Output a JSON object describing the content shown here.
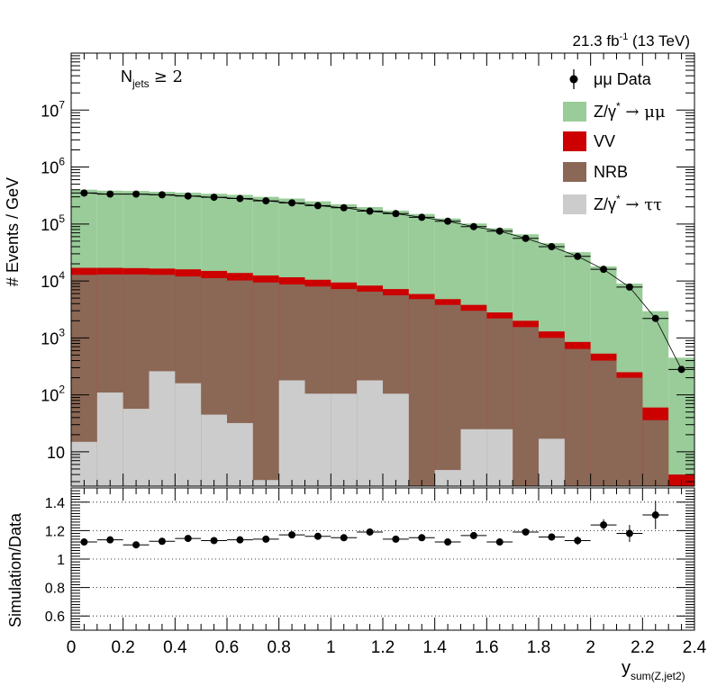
{
  "chart_data": [
    {
      "type": "stacked-histogram",
      "panel": "main",
      "lumi_label": "21.3 fb",
      "lumi_exponent": "-1",
      "lumi_suffix": " (13 TeV)",
      "category_label": "N",
      "category_subscript": "jets",
      "category_cut": "≥ 2",
      "ylabel": "# Events / GeV",
      "xlabel": "y",
      "xlabel_subscript": "sum(Z,jet2)",
      "yscale": "log",
      "ylim": [
        2.5,
        100000000
      ],
      "xlim": [
        0,
        2.4
      ],
      "x_edges": [
        0,
        0.1,
        0.2,
        0.3,
        0.4,
        0.5,
        0.6,
        0.7,
        0.8,
        0.9,
        1.0,
        1.1,
        1.2,
        1.3,
        1.4,
        1.5,
        1.6,
        1.7,
        1.8,
        1.9,
        2.0,
        2.1,
        2.2,
        2.3,
        2.4
      ],
      "y_ticks": [
        {
          "value": 10,
          "base": "10",
          "exp": ""
        },
        {
          "value": 100,
          "base": "10",
          "exp": "2"
        },
        {
          "value": 1000,
          "base": "10",
          "exp": "3"
        },
        {
          "value": 10000,
          "base": "10",
          "exp": "4"
        },
        {
          "value": 100000,
          "base": "10",
          "exp": "5"
        },
        {
          "value": 1000000,
          "base": "10",
          "exp": "6"
        },
        {
          "value": 10000000,
          "base": "10",
          "exp": "7"
        }
      ],
      "stacked_totals": [
        {
          "name": "Z/γ* → ττ",
          "values": [
            15,
            110,
            57,
            260,
            160,
            45,
            32,
            3.2,
            180,
            105,
            105,
            180,
            105,
            2.4,
            4.8,
            25,
            25,
            2.4,
            17,
            2.4,
            2.4,
            2.4,
            2.4,
            2.4
          ]
        },
        {
          "name": "NRB",
          "values": [
            12800,
            13000,
            13000,
            12800,
            12000,
            11200,
            10200,
            9400,
            8700,
            8000,
            7200,
            6500,
            5600,
            4800,
            3800,
            3000,
            2200,
            1550,
            1000,
            640,
            400,
            200,
            36,
            2.4
          ]
        },
        {
          "name": "VV",
          "values": [
            17000,
            17000,
            16800,
            16500,
            16000,
            15000,
            13800,
            12500,
            11600,
            10500,
            9400,
            8300,
            7200,
            5900,
            4800,
            3800,
            2800,
            2000,
            1300,
            850,
            530,
            250,
            60,
            4
          ]
        },
        {
          "name": "Z/γ* → μμ",
          "values": [
            400000,
            385000,
            380000,
            368000,
            355000,
            340000,
            325000,
            300000,
            280000,
            250000,
            222000,
            198000,
            172000,
            150000,
            125000,
            102000,
            84000,
            66000,
            46000,
            32000,
            18000,
            9000,
            2950,
            450
          ]
        }
      ],
      "data": {
        "name": "μμ Data",
        "x": [
          0.05,
          0.15,
          0.25,
          0.35,
          0.45,
          0.55,
          0.65,
          0.75,
          0.85,
          0.95,
          1.05,
          1.15,
          1.25,
          1.35,
          1.45,
          1.55,
          1.65,
          1.75,
          1.85,
          1.95,
          2.05,
          2.15,
          2.25,
          2.35
        ],
        "values": [
          350000,
          335000,
          335000,
          325000,
          310000,
          295000,
          280000,
          255000,
          235000,
          210000,
          193000,
          168000,
          152000,
          131000,
          112000,
          90000,
          75000,
          56000,
          40000,
          27000,
          16000,
          7800,
          2200,
          280
        ]
      },
      "legend": [
        {
          "label": "μμ Data",
          "marker": "point",
          "color": "#000000"
        },
        {
          "label": "Z/γ",
          "sup": "*",
          "tail": " → μμ",
          "color": "#99cc99"
        },
        {
          "label": "VV",
          "color": "#cc0000"
        },
        {
          "label": "NRB",
          "color": "#8b6755"
        },
        {
          "label": "Z/γ",
          "sup": "*",
          "tail": " → ττ",
          "color": "#cccccc"
        }
      ]
    },
    {
      "type": "ratio",
      "panel": "ratio",
      "ylabel": "Simulation/Data",
      "ylim": [
        0.5,
        1.5
      ],
      "y_ticks": [
        "0.6",
        "0.8",
        "1",
        "1.2",
        "1.4"
      ],
      "x_ticks": [
        "0",
        "0.2",
        "0.4",
        "0.6",
        "0.8",
        "1",
        "1.2",
        "1.4",
        "1.6",
        "1.8",
        "2",
        "2.2",
        "2.4"
      ],
      "x": [
        0.05,
        0.15,
        0.25,
        0.35,
        0.45,
        0.55,
        0.65,
        0.75,
        0.85,
        0.95,
        1.05,
        1.15,
        1.25,
        1.35,
        1.45,
        1.55,
        1.65,
        1.75,
        1.85,
        1.95,
        2.05,
        2.15,
        2.25
      ],
      "values": [
        1.12,
        1.135,
        1.1,
        1.125,
        1.145,
        1.13,
        1.135,
        1.14,
        1.17,
        1.16,
        1.15,
        1.19,
        1.14,
        1.15,
        1.12,
        1.165,
        1.12,
        1.19,
        1.155,
        1.13,
        1.24,
        1.18,
        1.31
      ],
      "errors": [
        0.012,
        0.012,
        0.012,
        0.012,
        0.012,
        0.012,
        0.012,
        0.012,
        0.012,
        0.012,
        0.012,
        0.012,
        0.012,
        0.015,
        0.015,
        0.018,
        0.02,
        0.02,
        0.025,
        0.03,
        0.04,
        0.06,
        0.1
      ]
    }
  ]
}
